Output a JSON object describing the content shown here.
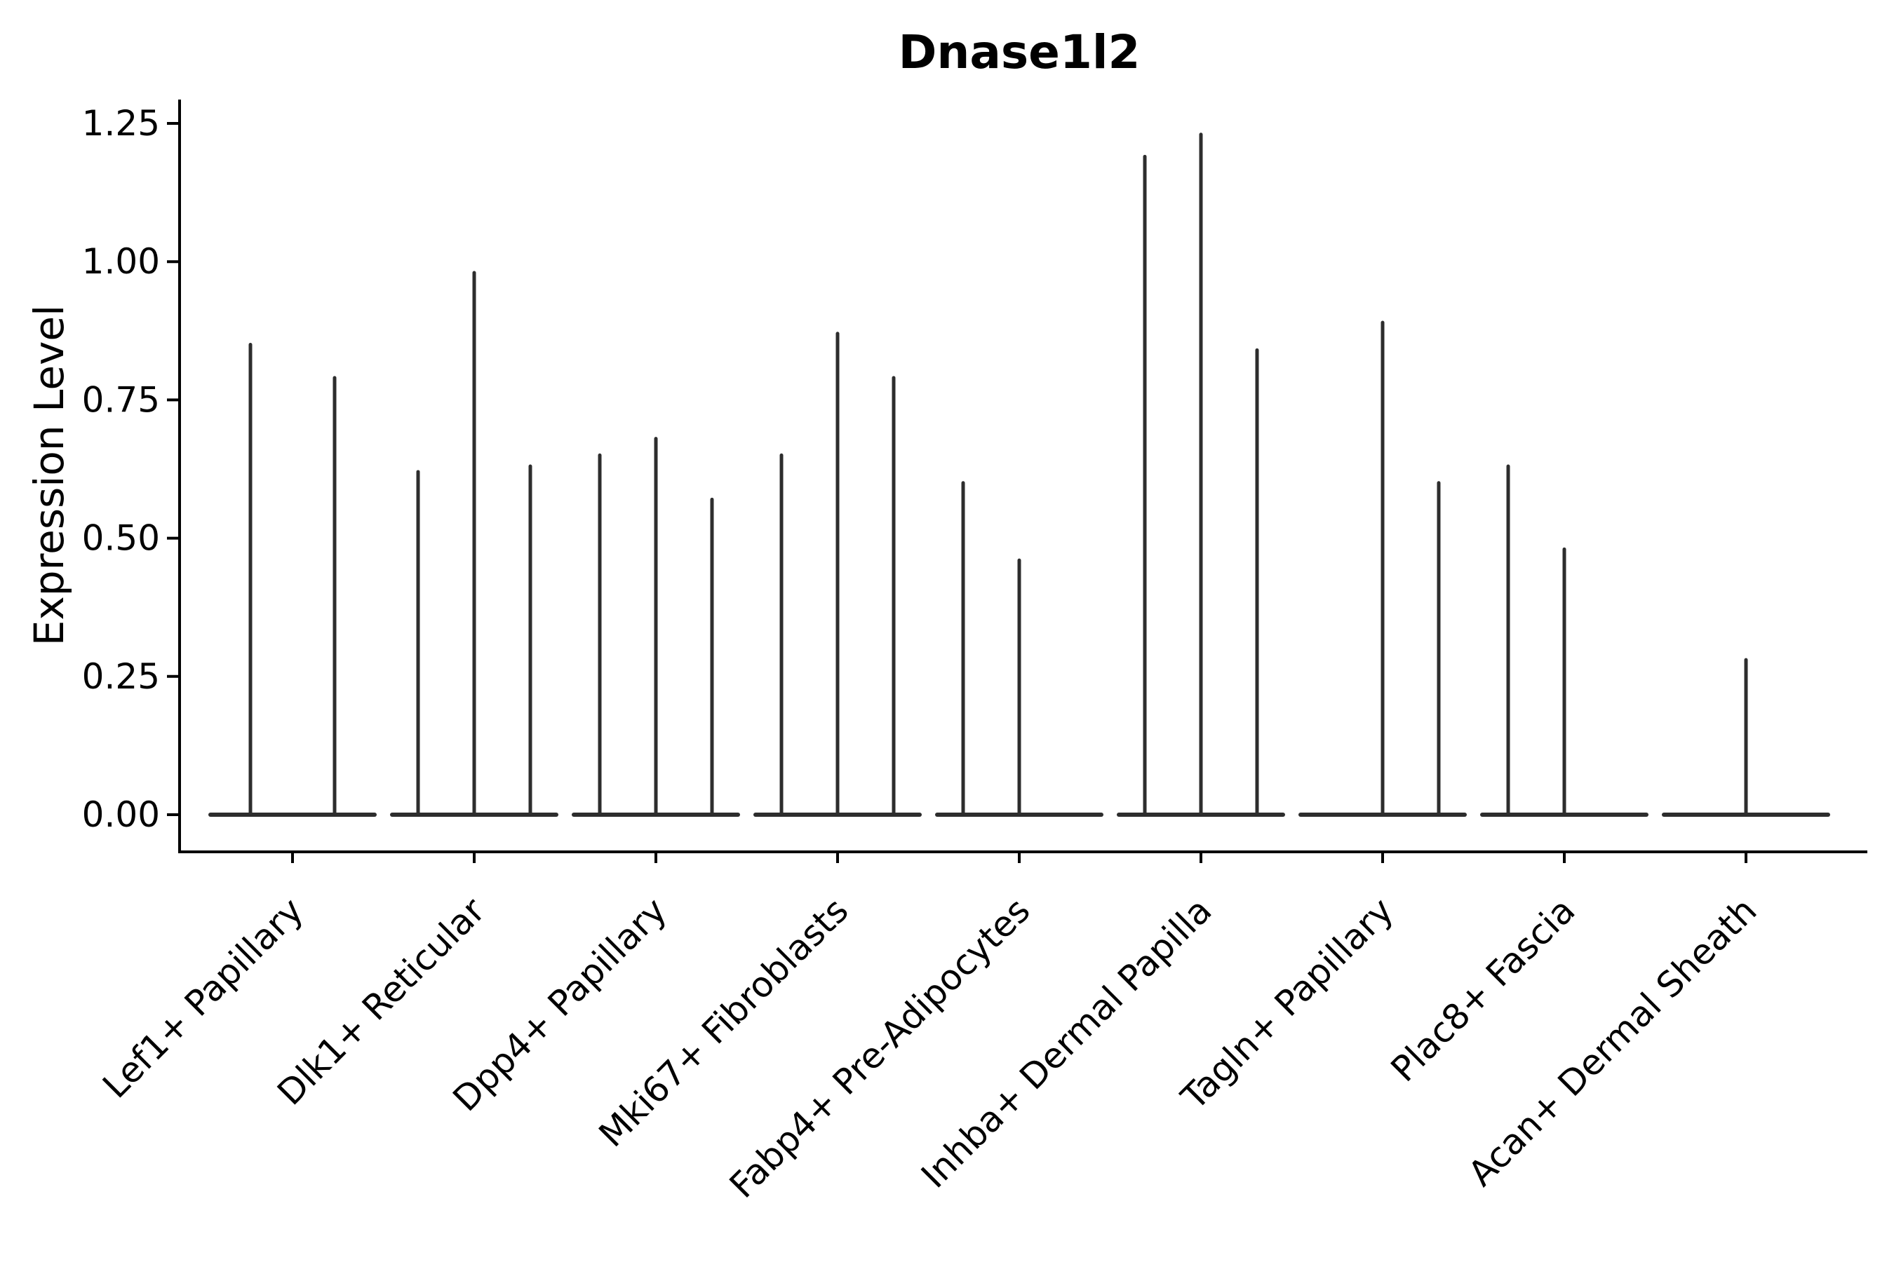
{
  "chart_data": {
    "type": "violin",
    "title": "Dnase1l2",
    "xlabel": "",
    "ylabel": "Expression Level",
    "ylim": [
      0,
      1.25
    ],
    "yticks": [
      "0.00",
      "0.25",
      "0.50",
      "0.75",
      "1.00",
      "1.25"
    ],
    "grid": false,
    "legend": "none",
    "description": "Split violin plot; expression is near zero for most cells so each violin collapses to a flat line at 0 with a thin spike up to its maximum expression value.",
    "categories": [
      "Lef1+ Papillary",
      "Dlk1+ Reticular",
      "Dpp4+ Papillary",
      "Mki67+ Fibroblasts",
      "Fabp4+ Pre-Adipocytes",
      "Inhba+ Dermal Papilla",
      "Tagln+ Papillary",
      "Plac8+ Fascia",
      "Acan+ Dermal Sheath"
    ],
    "groups": [
      {
        "label": "Lef1+ Papillary",
        "violins": [
          {
            "pos": 0.25,
            "max": 0.85
          },
          {
            "pos": 0.75,
            "max": 0.79
          }
        ]
      },
      {
        "label": "Dlk1+ Reticular",
        "violins": [
          {
            "pos": 0.1667,
            "max": 0.62
          },
          {
            "pos": 0.5,
            "max": 0.98
          },
          {
            "pos": 0.8333,
            "max": 0.63
          }
        ]
      },
      {
        "label": "Dpp4+ Papillary",
        "violins": [
          {
            "pos": 0.1667,
            "max": 0.65
          },
          {
            "pos": 0.5,
            "max": 0.68
          },
          {
            "pos": 0.8333,
            "max": 0.57
          }
        ]
      },
      {
        "label": "Mki67+ Fibroblasts",
        "violins": [
          {
            "pos": 0.1667,
            "max": 0.65
          },
          {
            "pos": 0.5,
            "max": 0.87
          },
          {
            "pos": 0.8333,
            "max": 0.79
          }
        ]
      },
      {
        "label": "Fabp4+ Pre-Adipocytes",
        "violins": [
          {
            "pos": 0.1667,
            "max": 0.6
          },
          {
            "pos": 0.5,
            "max": 0.46
          }
        ]
      },
      {
        "label": "Inhba+ Dermal Papilla",
        "violins": [
          {
            "pos": 0.1667,
            "max": 1.19
          },
          {
            "pos": 0.5,
            "max": 1.23
          },
          {
            "pos": 0.8333,
            "max": 0.84
          }
        ]
      },
      {
        "label": "Tagln+ Papillary",
        "violins": [
          {
            "pos": 0.5,
            "max": 0.89
          },
          {
            "pos": 0.8333,
            "max": 0.6
          }
        ]
      },
      {
        "label": "Plac8+ Fascia",
        "violins": [
          {
            "pos": 0.1667,
            "max": 0.63
          },
          {
            "pos": 0.5,
            "max": 0.48
          }
        ]
      },
      {
        "label": "Acan+ Dermal Sheath",
        "violins": [
          {
            "pos": 0.5,
            "max": 0.28
          }
        ]
      }
    ],
    "colors": {
      "violin_line": "#2d2d2d",
      "axis": "#000000",
      "text": "#000000",
      "background": "#ffffff"
    }
  }
}
